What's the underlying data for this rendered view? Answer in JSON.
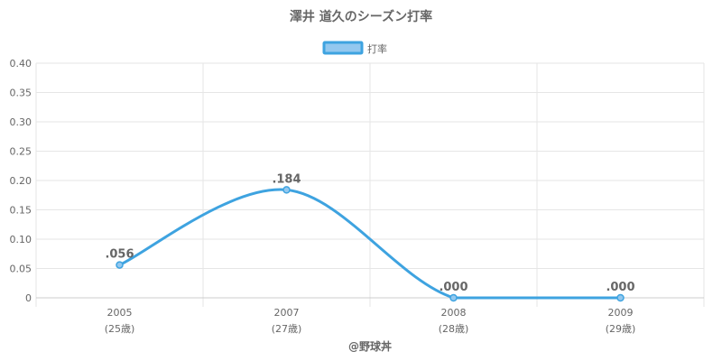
{
  "chart_data": {
    "type": "line",
    "title": "澤井 道久のシーズン打率",
    "categories": [
      "2005",
      "2007",
      "2008",
      "2009"
    ],
    "sublabels": [
      "(25歳)",
      "(27歳)",
      "(28歳)",
      "(29歳)"
    ],
    "series": [
      {
        "name": "打率",
        "values": [
          0.056,
          0.184,
          0.0,
          0.0
        ],
        "labels": [
          ".056",
          ".184",
          ".000",
          ".000"
        ],
        "color": "#3ea3e0",
        "fill": "#93c8ef"
      }
    ],
    "yticks": [
      "0",
      "0.05",
      "0.10",
      "0.15",
      "0.20",
      "0.25",
      "0.30",
      "0.35",
      "0.40"
    ],
    "ylim": [
      0,
      0.4
    ],
    "grid": true,
    "legend": "top-center"
  },
  "credit": "@野球丼",
  "colors": {
    "grid": "#e6e6e6",
    "text": "#666666",
    "axis": "#cccccc"
  }
}
